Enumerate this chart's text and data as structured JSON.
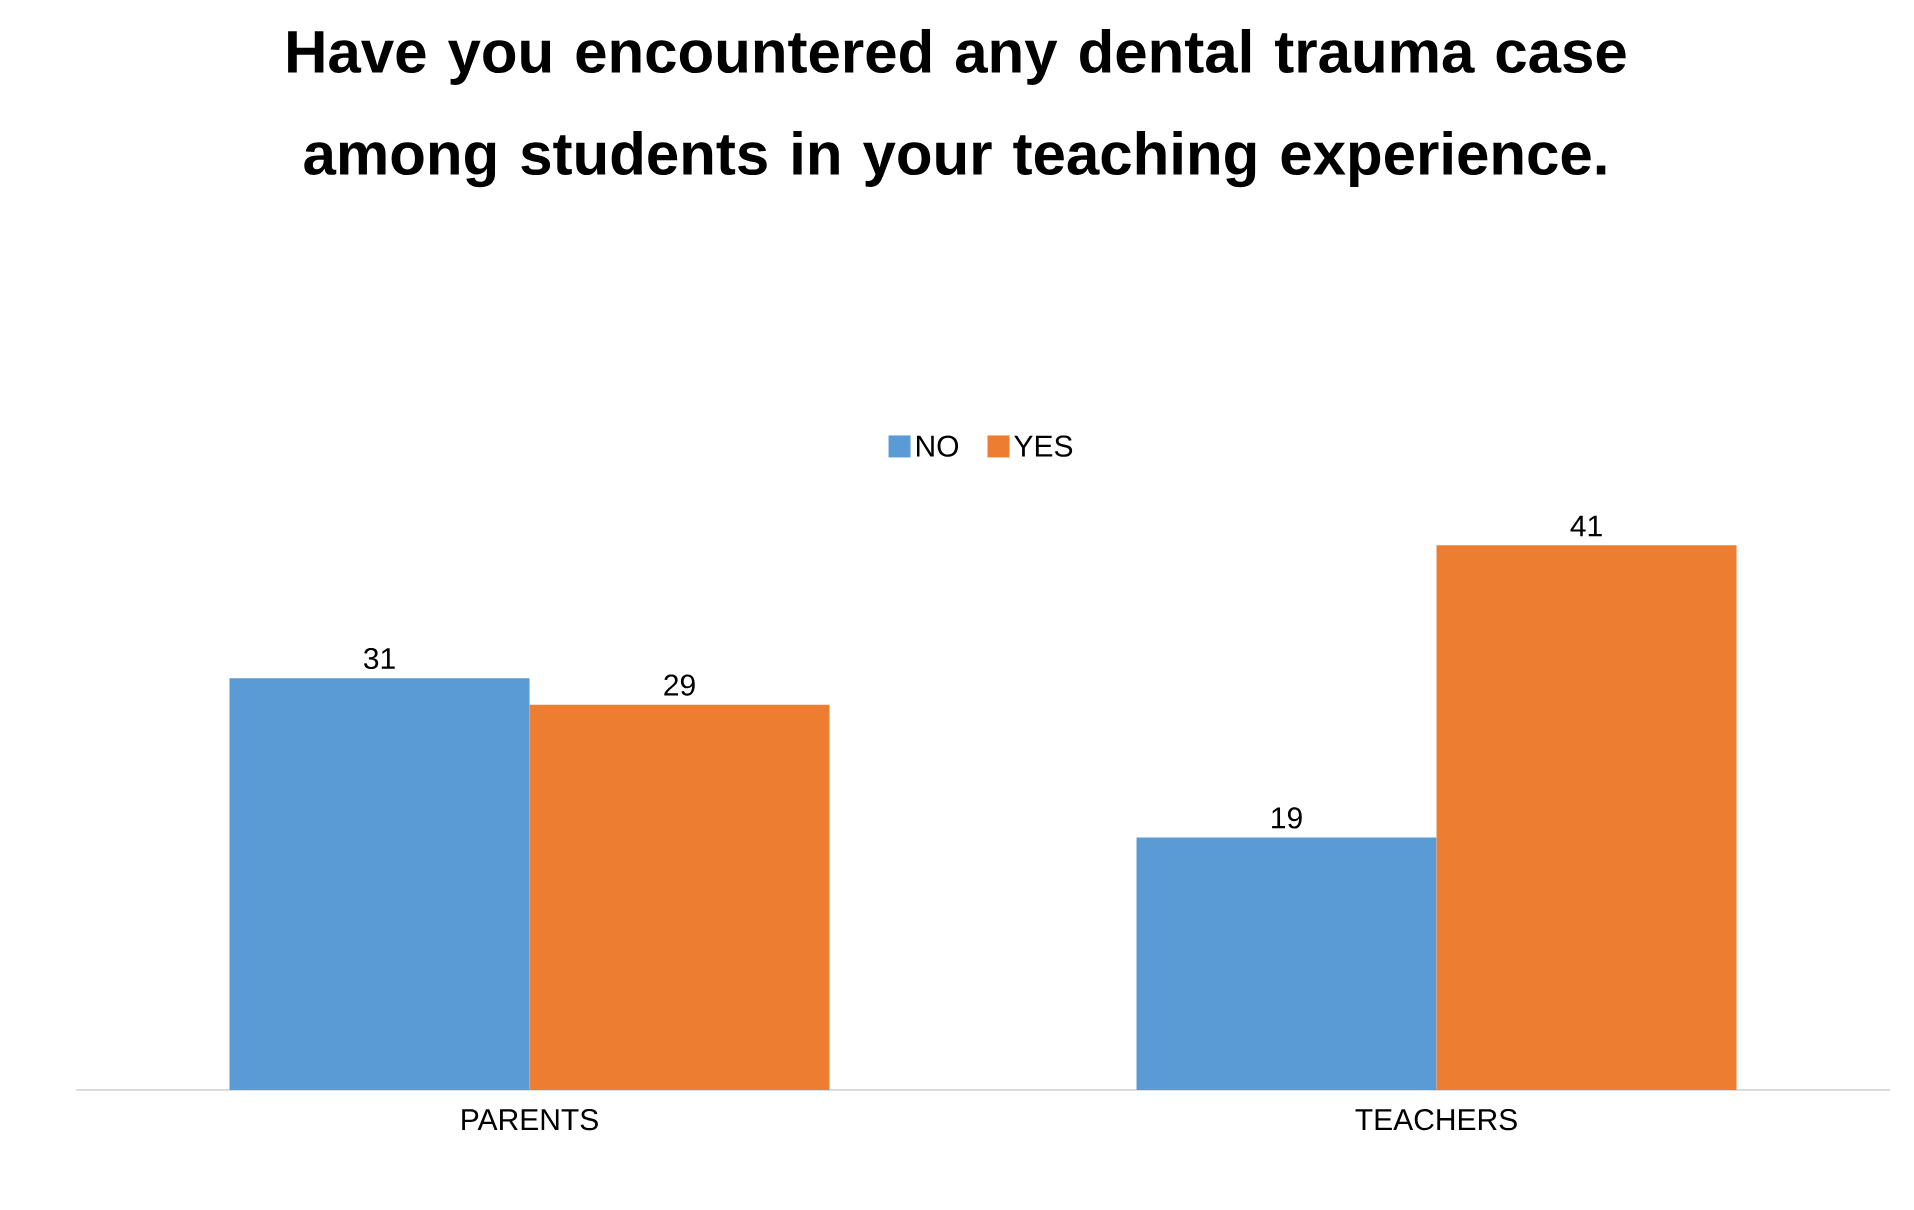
{
  "chart_data": {
    "type": "bar",
    "title": "Have you encountered any dental trauma case among students in your teaching experience.",
    "categories": [
      "PARENTS",
      "TEACHERS"
    ],
    "series": [
      {
        "name": "NO",
        "color": "#5b9bd5",
        "values": [
          31,
          19
        ]
      },
      {
        "name": "YES",
        "color": "#ed7d31",
        "values": [
          29,
          41
        ]
      }
    ],
    "data_labels": true,
    "legend": "top"
  }
}
